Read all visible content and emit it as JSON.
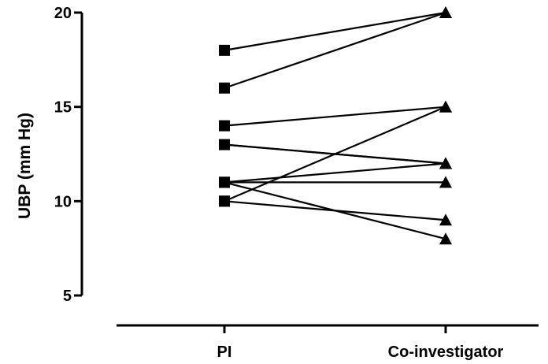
{
  "chart_data": {
    "type": "line",
    "subtype": "paired-dot-plot",
    "title": "",
    "ylabel": "UBP (mm Hg)",
    "xlabel": "",
    "categories": [
      "PI",
      "Co-investigator"
    ],
    "ylim": [
      5,
      20
    ],
    "yticks": [
      5,
      10,
      15,
      20
    ],
    "grid": false,
    "legend": "none",
    "markers": {
      "PI": "square",
      "Co-investigator": "triangle"
    },
    "colors": {
      "marker": "#000000",
      "line": "#000000",
      "axis": "#000000"
    },
    "pairs": [
      {
        "PI": 18,
        "Co-investigator": 20
      },
      {
        "PI": 16,
        "Co-investigator": 20
      },
      {
        "PI": 14,
        "Co-investigator": 15
      },
      {
        "PI": 13,
        "Co-investigator": 12
      },
      {
        "PI": 13,
        "Co-investigator": 12
      },
      {
        "PI": 11,
        "Co-investigator": 12
      },
      {
        "PI": 11,
        "Co-investigator": 11
      },
      {
        "PI": 11,
        "Co-investigator": 8
      },
      {
        "PI": 10,
        "Co-investigator": 15
      },
      {
        "PI": 10,
        "Co-investigator": 9
      }
    ]
  }
}
